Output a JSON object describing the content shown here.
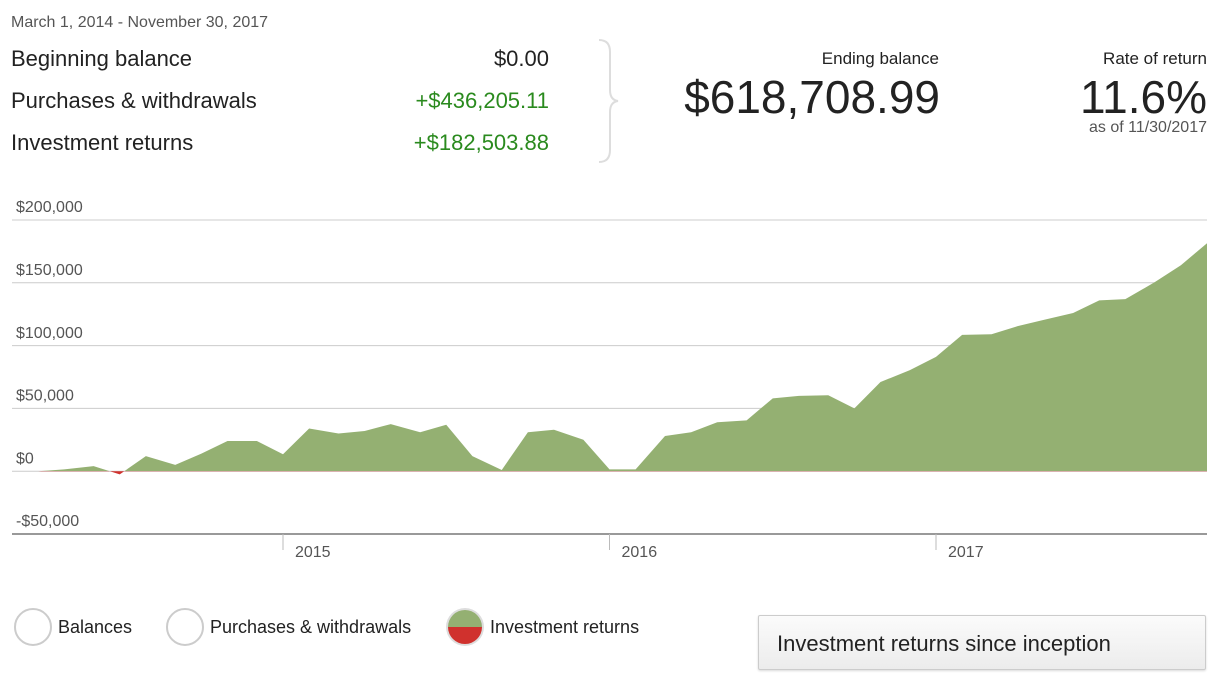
{
  "header": {
    "date_range": "March 1, 2014 - November 30, 2017"
  },
  "summary": {
    "rows": [
      {
        "label": "Beginning balance",
        "value": "$0.00"
      },
      {
        "label": "Purchases & withdrawals",
        "value": "+$436,205.11"
      },
      {
        "label": "Investment returns",
        "value": "+$182,503.88"
      }
    ]
  },
  "ending_balance": {
    "label": "Ending balance",
    "value": "$618,708.99"
  },
  "rate_of_return": {
    "label": "Rate of return",
    "value": "11.6%",
    "as_of": "as of 11/30/2017"
  },
  "chart_data": {
    "type": "area",
    "x": [
      2014.17,
      2014.25,
      2014.33,
      2014.42,
      2014.5,
      2014.58,
      2014.67,
      2014.75,
      2014.83,
      2014.92,
      2015,
      2015.08,
      2015.17,
      2015.25,
      2015.33,
      2015.42,
      2015.5,
      2015.58,
      2015.67,
      2015.75,
      2015.83,
      2015.92,
      2016,
      2016.08,
      2016.17,
      2016.25,
      2016.33,
      2016.42,
      2016.5,
      2016.58,
      2016.67,
      2016.75,
      2016.83,
      2016.92,
      2017,
      2017.08,
      2017.17,
      2017.25,
      2017.33,
      2017.42,
      2017.5,
      2017.58,
      2017.67,
      2017.75,
      2017.83
    ],
    "values": [
      0,
      0,
      1500,
      4000,
      -2500,
      12000,
      5000,
      14000,
      24000,
      24000,
      13500,
      34000,
      30000,
      32000,
      37500,
      31000,
      37000,
      12000,
      1000,
      31000,
      33000,
      25000,
      1500,
      1500,
      28000,
      31000,
      39000,
      40500,
      58000,
      60000,
      60500,
      50000,
      71000,
      80500,
      91000,
      108500,
      109000,
      115500,
      120500,
      126000,
      136000,
      137000,
      150500,
      164000,
      181500
    ],
    "color": "#94b072",
    "negative_color": "#d0312d",
    "xlim": [
      2014.17,
      2017.83
    ],
    "xticks": [
      2015,
      2016,
      2017
    ],
    "ylim": [
      -50000,
      200000
    ],
    "yticks": [
      {
        "value": -50000,
        "label": "-$50,000"
      },
      {
        "value": 0,
        "label": "$0"
      },
      {
        "value": 50000,
        "label": "$50,000"
      },
      {
        "value": 100000,
        "label": "$100,000"
      },
      {
        "value": 150000,
        "label": "$150,000"
      },
      {
        "value": 200000,
        "label": "$200,000"
      }
    ],
    "grid": true
  },
  "legend_options": [
    "Balances",
    "Purchases & withdrawals",
    "Investment returns"
  ],
  "button": {
    "label": "Investment returns since inception"
  }
}
